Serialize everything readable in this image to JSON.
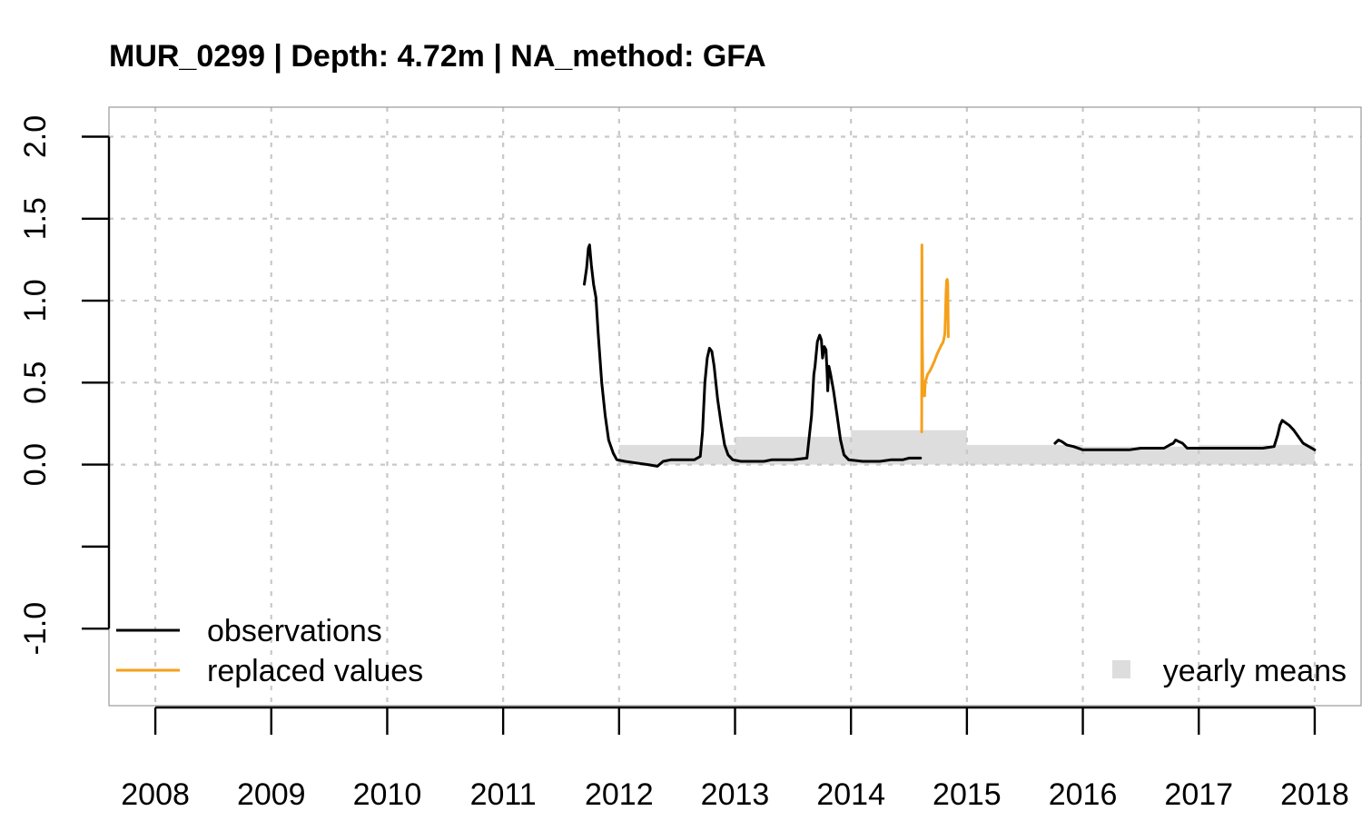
{
  "chart_data": {
    "type": "line",
    "title": "MUR_0299 | Depth: 4.72m | NA_method: GFA",
    "xlabel": "",
    "ylabel": "",
    "xlim": [
      2007.6,
      2018.4
    ],
    "ylim": [
      -1.47,
      2.18
    ],
    "grid": true,
    "x_ticks": [
      2008,
      2009,
      2010,
      2011,
      2012,
      2013,
      2014,
      2015,
      2016,
      2017,
      2018
    ],
    "x_tick_labels": [
      "2008",
      "2009",
      "2010",
      "2011",
      "2012",
      "2013",
      "2014",
      "2015",
      "2016",
      "2017",
      "2018"
    ],
    "y_ticks": [
      -1.0,
      -0.5,
      0.0,
      0.5,
      1.0,
      1.5,
      2.0
    ],
    "y_tick_labels": [
      {
        "value": -1.0,
        "label": "-1.0"
      },
      {
        "value": 0.0,
        "label": "0.0"
      },
      {
        "value": 0.5,
        "label": "0.5"
      },
      {
        "value": 1.0,
        "label": "1.0"
      },
      {
        "value": 1.5,
        "label": "1.5"
      },
      {
        "value": 2.0,
        "label": "2.0"
      }
    ],
    "legend": {
      "left": [
        {
          "label": "observations",
          "color": "#000000",
          "kind": "line"
        },
        {
          "label": "replaced values",
          "color": "#f5a01a",
          "kind": "line"
        }
      ],
      "right": [
        {
          "label": "yearly means",
          "color": "#dddddd",
          "kind": "square"
        }
      ]
    },
    "yearly_means": {
      "color": "#dddddd",
      "bars": [
        {
          "x_start": 2012.0,
          "x_end": 2013.0,
          "value": 0.12
        },
        {
          "x_start": 2013.0,
          "x_end": 2014.0,
          "value": 0.17
        },
        {
          "x_start": 2014.0,
          "x_end": 2015.0,
          "value": 0.21
        },
        {
          "x_start": 2015.0,
          "x_end": 2016.0,
          "value": 0.12
        },
        {
          "x_start": 2016.0,
          "x_end": 2017.0,
          "value": 0.11
        },
        {
          "x_start": 2017.0,
          "x_end": 2018.0,
          "value": 0.12
        }
      ]
    },
    "series": [
      {
        "name": "observations",
        "color": "#000000",
        "segments": [
          [
            [
              2011.7,
              1.1
            ],
            [
              2011.72,
              1.2
            ],
            [
              2011.735,
              1.32
            ],
            [
              2011.745,
              1.34
            ],
            [
              2011.76,
              1.22
            ],
            [
              2011.78,
              1.1
            ],
            [
              2011.8,
              1.02
            ],
            [
              2011.82,
              0.8
            ],
            [
              2011.85,
              0.5
            ],
            [
              2011.88,
              0.3
            ],
            [
              2011.91,
              0.15
            ],
            [
              2011.95,
              0.07
            ],
            [
              2011.98,
              0.03
            ],
            [
              2012.05,
              0.02
            ],
            [
              2012.15,
              0.01
            ],
            [
              2012.25,
              0.0
            ],
            [
              2012.33,
              -0.01
            ],
            [
              2012.38,
              0.02
            ],
            [
              2012.45,
              0.03
            ],
            [
              2012.55,
              0.03
            ],
            [
              2012.65,
              0.03
            ],
            [
              2012.7,
              0.05
            ],
            [
              2012.72,
              0.2
            ],
            [
              2012.74,
              0.5
            ],
            [
              2012.76,
              0.65
            ],
            [
              2012.78,
              0.71
            ],
            [
              2012.8,
              0.69
            ],
            [
              2012.82,
              0.6
            ],
            [
              2012.85,
              0.4
            ],
            [
              2012.88,
              0.25
            ],
            [
              2012.91,
              0.12
            ],
            [
              2012.94,
              0.06
            ],
            [
              2012.98,
              0.03
            ],
            [
              2013.05,
              0.02
            ],
            [
              2013.15,
              0.02
            ],
            [
              2013.25,
              0.02
            ],
            [
              2013.32,
              0.03
            ],
            [
              2013.4,
              0.03
            ],
            [
              2013.5,
              0.03
            ],
            [
              2013.62,
              0.04
            ],
            [
              2013.66,
              0.3
            ],
            [
              2013.68,
              0.55
            ],
            [
              2013.69,
              0.6
            ],
            [
              2013.71,
              0.75
            ],
            [
              2013.73,
              0.79
            ],
            [
              2013.745,
              0.76
            ],
            [
              2013.755,
              0.65
            ],
            [
              2013.77,
              0.72
            ],
            [
              2013.785,
              0.7
            ],
            [
              2013.795,
              0.55
            ],
            [
              2013.8,
              0.45
            ],
            [
              2013.81,
              0.6
            ],
            [
              2013.825,
              0.55
            ],
            [
              2013.85,
              0.45
            ],
            [
              2013.88,
              0.3
            ],
            [
              2013.91,
              0.15
            ],
            [
              2013.94,
              0.06
            ],
            [
              2013.98,
              0.03
            ],
            [
              2014.1,
              0.02
            ],
            [
              2014.25,
              0.02
            ],
            [
              2014.35,
              0.03
            ],
            [
              2014.45,
              0.03
            ],
            [
              2014.5,
              0.04
            ],
            [
              2014.55,
              0.04
            ],
            [
              2014.6,
              0.04
            ]
          ],
          [
            [
              2015.76,
              0.13
            ],
            [
              2015.79,
              0.15
            ],
            [
              2015.82,
              0.14
            ],
            [
              2015.86,
              0.12
            ],
            [
              2015.92,
              0.11
            ],
            [
              2016.0,
              0.09
            ],
            [
              2016.1,
              0.09
            ],
            [
              2016.2,
              0.09
            ],
            [
              2016.3,
              0.09
            ],
            [
              2016.4,
              0.09
            ],
            [
              2016.5,
              0.1
            ],
            [
              2016.6,
              0.1
            ],
            [
              2016.7,
              0.1
            ],
            [
              2016.75,
              0.12
            ],
            [
              2016.78,
              0.13
            ],
            [
              2016.8,
              0.15
            ],
            [
              2016.83,
              0.14
            ],
            [
              2016.86,
              0.13
            ],
            [
              2016.9,
              0.1
            ],
            [
              2016.95,
              0.1
            ],
            [
              2017.05,
              0.1
            ],
            [
              2017.15,
              0.1
            ],
            [
              2017.25,
              0.1
            ],
            [
              2017.35,
              0.1
            ],
            [
              2017.45,
              0.1
            ],
            [
              2017.55,
              0.1
            ],
            [
              2017.65,
              0.11
            ],
            [
              2017.68,
              0.18
            ],
            [
              2017.7,
              0.24
            ],
            [
              2017.72,
              0.27
            ],
            [
              2017.74,
              0.26
            ],
            [
              2017.78,
              0.24
            ],
            [
              2017.82,
              0.21
            ],
            [
              2017.86,
              0.17
            ],
            [
              2017.9,
              0.13
            ],
            [
              2017.95,
              0.11
            ],
            [
              2018.0,
              0.09
            ]
          ]
        ]
      },
      {
        "name": "replaced values",
        "color": "#f5a01a",
        "segments": [
          [
            [
              2014.61,
              0.2
            ],
            [
              2014.612,
              1.34
            ],
            [
              2014.615,
              0.8
            ],
            [
              2014.62,
              0.5
            ],
            [
              2014.625,
              0.42
            ],
            [
              2014.63,
              0.48
            ],
            [
              2014.635,
              0.42
            ],
            [
              2014.64,
              0.5
            ],
            [
              2014.66,
              0.55
            ],
            [
              2014.68,
              0.57
            ],
            [
              2014.7,
              0.6
            ],
            [
              2014.72,
              0.63
            ],
            [
              2014.74,
              0.67
            ],
            [
              2014.76,
              0.7
            ],
            [
              2014.78,
              0.73
            ],
            [
              2014.79,
              0.74
            ],
            [
              2014.8,
              0.76
            ],
            [
              2014.81,
              0.8
            ],
            [
              2014.815,
              0.9
            ],
            [
              2014.82,
              1.05
            ],
            [
              2014.825,
              1.12
            ],
            [
              2014.83,
              1.13
            ],
            [
              2014.835,
              1.1
            ],
            [
              2014.84,
              0.78
            ]
          ]
        ]
      }
    ]
  }
}
